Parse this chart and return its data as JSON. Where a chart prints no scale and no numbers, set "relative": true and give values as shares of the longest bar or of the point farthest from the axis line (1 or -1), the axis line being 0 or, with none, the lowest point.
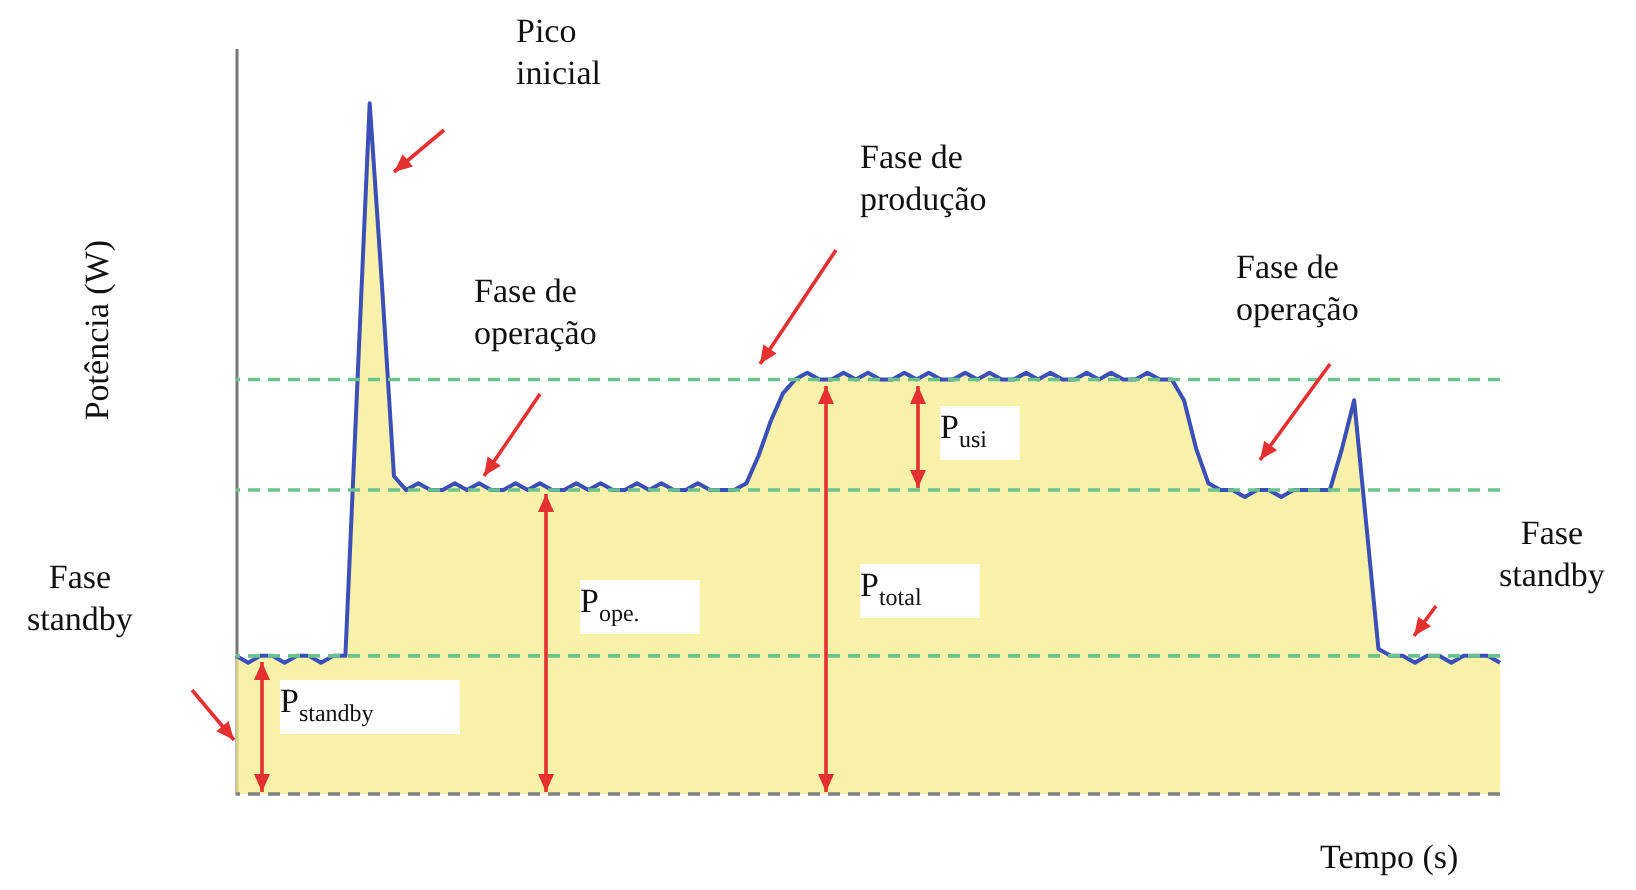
{
  "chart_data": {
    "type": "line",
    "relative": true,
    "xlabel": "Tempo (s)",
    "ylabel": "Potência (W)",
    "categories": [
      null,
      null,
      null,
      null,
      null,
      null,
      null,
      null,
      null,
      null,
      null,
      null,
      null,
      null,
      null,
      null,
      null,
      null,
      null,
      null,
      null,
      null,
      null,
      null,
      null,
      null,
      null,
      null,
      null,
      null,
      null,
      null,
      null,
      null,
      null,
      null,
      null,
      null,
      null,
      null,
      null,
      null,
      null,
      null,
      null,
      null,
      null,
      null,
      null,
      null,
      null,
      null,
      null,
      null,
      null,
      null,
      null,
      null,
      null,
      null,
      null,
      null,
      null,
      null,
      null,
      null,
      null,
      null,
      null,
      null,
      null,
      null,
      null,
      null,
      null,
      null,
      null,
      null,
      null,
      null,
      null,
      null,
      null,
      null,
      null,
      null,
      null,
      null,
      null,
      null,
      null,
      null,
      null,
      null,
      null,
      null,
      null,
      null,
      null,
      null,
      null,
      null,
      null,
      null,
      null
    ],
    "series": [
      {
        "type": "area",
        "color": "#f6ec8e",
        "values": [
          0.2,
          0.19,
          0.2,
          0.2,
          0.19,
          0.2,
          0.2,
          0.19,
          0.2,
          0.2,
          0.6,
          1,
          0.74,
          0.46,
          0.44,
          0.45,
          0.44,
          0.44,
          0.45,
          0.44,
          0.45,
          0.44,
          0.44,
          0.45,
          0.44,
          0.45,
          0.44,
          0.44,
          0.45,
          0.44,
          0.45,
          0.44,
          0.44,
          0.45,
          0.44,
          0.45,
          0.44,
          0.44,
          0.45,
          0.44,
          0.44,
          0.44,
          0.45,
          0.49,
          0.54,
          0.58,
          0.6,
          0.61,
          0.6,
          0.6,
          0.61,
          0.6,
          0.61,
          0.6,
          0.6,
          0.61,
          0.6,
          0.61,
          0.6,
          0.6,
          0.61,
          0.6,
          0.61,
          0.6,
          0.6,
          0.61,
          0.6,
          0.61,
          0.6,
          0.6,
          0.61,
          0.6,
          0.61,
          0.6,
          0.6,
          0.61,
          0.6,
          0.6,
          0.57,
          0.5,
          0.45,
          0.44,
          0.44,
          0.43,
          0.44,
          0.44,
          0.43,
          0.44,
          0.44,
          0.44,
          0.44,
          0.5,
          0.57,
          0.39,
          0.21,
          0.2,
          0.2,
          0.19,
          0.2,
          0.2,
          0.19,
          0.2,
          0.2,
          0.2,
          0.19
        ]
      },
      {
        "type": "line",
        "color": "#3a4fb8",
        "values": [
          0.2,
          0.19,
          0.2,
          0.2,
          0.19,
          0.2,
          0.2,
          0.19,
          0.2,
          0.2,
          0.6,
          1,
          0.74,
          0.46,
          0.44,
          0.45,
          0.44,
          0.44,
          0.45,
          0.44,
          0.45,
          0.44,
          0.44,
          0.45,
          0.44,
          0.45,
          0.44,
          0.44,
          0.45,
          0.44,
          0.45,
          0.44,
          0.44,
          0.45,
          0.44,
          0.45,
          0.44,
          0.44,
          0.45,
          0.44,
          0.44,
          0.44,
          0.45,
          0.49,
          0.54,
          0.58,
          0.6,
          0.61,
          0.6,
          0.6,
          0.61,
          0.6,
          0.61,
          0.6,
          0.6,
          0.61,
          0.6,
          0.61,
          0.6,
          0.6,
          0.61,
          0.6,
          0.61,
          0.6,
          0.6,
          0.61,
          0.6,
          0.61,
          0.6,
          0.6,
          0.61,
          0.6,
          0.61,
          0.6,
          0.6,
          0.61,
          0.6,
          0.6,
          0.57,
          0.5,
          0.45,
          0.44,
          0.44,
          0.43,
          0.44,
          0.44,
          0.43,
          0.44,
          0.44,
          0.44,
          0.44,
          0.5,
          0.57,
          0.39,
          0.21,
          0.2,
          0.2,
          0.19,
          0.2,
          0.2,
          0.19,
          0.2,
          0.2,
          0.2,
          0.19
        ]
      }
    ],
    "ref_lines": [
      {
        "axis": "y",
        "value": 0,
        "color": "#808080",
        "line_style": "dashed"
      },
      {
        "axis": "y",
        "value": 0.2,
        "color": "#6cc28c",
        "line_style": "dashed"
      },
      {
        "axis": "y",
        "value": 0.44,
        "color": "#6cc28c",
        "line_style": "dashed"
      },
      {
        "axis": "y",
        "value": 0.6,
        "color": "#6cc28c",
        "line_style": "dashed"
      }
    ],
    "annotations": [
      "Pico inicial",
      "Fase de operação",
      "Fase de produção",
      "Fase de operação",
      "Fase standby",
      "Fase standby",
      "P$_{standby}$",
      "P$_{ope.}$",
      "P$_{total}$",
      "P$_{usi}$"
    ]
  }
}
